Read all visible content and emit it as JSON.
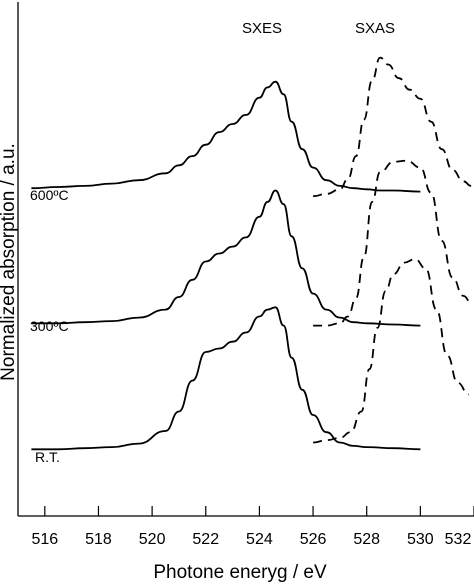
{
  "chart_data": {
    "type": "line",
    "title": "",
    "xlabel": "Photone eneryg / eV",
    "ylabel": "Normalized absorption / a.u.",
    "xlim": [
      515,
      532
    ],
    "x_ticks": [
      516,
      518,
      520,
      522,
      524,
      526,
      528,
      530,
      532
    ],
    "grid": false,
    "legend": "none",
    "annotations": [
      "SXES",
      "SXAS"
    ],
    "series": [
      {
        "name": "600°C",
        "style": "solid",
        "x": [
          515.5,
          516.5,
          517.5,
          518.5,
          519.5,
          520.5,
          521.0,
          521.5,
          522.0,
          522.5,
          523.0,
          523.5,
          524.0,
          524.3,
          524.6,
          524.9,
          525.2,
          525.6,
          526.0,
          526.5,
          527.0,
          527.5,
          528.0,
          528.5,
          529.0,
          530.0
        ],
        "y": [
          0.2,
          0.21,
          0.22,
          0.24,
          0.27,
          0.33,
          0.4,
          0.48,
          0.58,
          0.69,
          0.76,
          0.84,
          0.99,
          1.08,
          1.13,
          1.02,
          0.78,
          0.54,
          0.38,
          0.27,
          0.22,
          0.2,
          0.19,
          0.18,
          0.18,
          0.17
        ]
      },
      {
        "name": "300°C",
        "style": "solid",
        "x": [
          515.5,
          516.5,
          517.5,
          518.5,
          519.5,
          520.5,
          521.0,
          521.5,
          522.0,
          522.5,
          523.0,
          523.5,
          524.0,
          524.3,
          524.6,
          524.9,
          525.2,
          525.6,
          526.0,
          526.5,
          527.0,
          527.5,
          528.0,
          529.0,
          530.0
        ],
        "y": [
          -0.98,
          -0.98,
          -0.97,
          -0.96,
          -0.93,
          -0.86,
          -0.75,
          -0.6,
          -0.44,
          -0.37,
          -0.31,
          -0.23,
          -0.05,
          0.08,
          0.18,
          0.06,
          -0.22,
          -0.5,
          -0.72,
          -0.86,
          -0.93,
          -0.97,
          -0.98,
          -0.99,
          -1.0
        ]
      },
      {
        "name": "R.T.",
        "style": "solid",
        "x": [
          515.5,
          516.5,
          517.5,
          518.5,
          519.5,
          520.5,
          521.0,
          521.5,
          522.0,
          522.5,
          523.0,
          523.5,
          524.0,
          524.3,
          524.6,
          524.9,
          525.2,
          525.6,
          526.0,
          526.5,
          527.0,
          527.5,
          528.0,
          529.0,
          530.0
        ],
        "y": [
          -2.08,
          -2.08,
          -2.07,
          -2.06,
          -2.03,
          -1.92,
          -1.75,
          -1.48,
          -1.23,
          -1.2,
          -1.14,
          -1.06,
          -0.92,
          -0.86,
          -0.84,
          -1.0,
          -1.28,
          -1.56,
          -1.78,
          -1.93,
          -2.02,
          -2.05,
          -2.06,
          -2.07,
          -2.08
        ]
      },
      {
        "name": "SXAS 600°C",
        "style": "dashed",
        "x": [
          526.0,
          526.5,
          527.0,
          527.3,
          527.6,
          527.9,
          528.2,
          528.5,
          528.8,
          529.2,
          529.6,
          530.0,
          530.4,
          530.8,
          531.2,
          531.6,
          531.9
        ],
        "y": [
          0.13,
          0.15,
          0.19,
          0.28,
          0.48,
          0.8,
          1.14,
          1.34,
          1.28,
          1.16,
          1.06,
          0.98,
          0.78,
          0.54,
          0.36,
          0.26,
          0.22
        ]
      },
      {
        "name": "SXAS 300°C",
        "style": "dashed",
        "x": [
          526.0,
          526.5,
          527.0,
          527.3,
          527.6,
          527.9,
          528.2,
          528.5,
          529.0,
          529.5,
          530.0,
          530.4,
          530.8,
          531.2,
          531.6,
          531.9
        ],
        "y": [
          -1.0,
          -1.0,
          -0.98,
          -0.92,
          -0.76,
          -0.4,
          0.08,
          0.34,
          0.43,
          0.44,
          0.38,
          0.16,
          -0.26,
          -0.58,
          -0.74,
          -0.8
        ]
      },
      {
        "name": "SXAS R.T.",
        "style": "dashed",
        "x": [
          526.0,
          526.5,
          527.0,
          527.4,
          527.8,
          528.1,
          528.4,
          528.7,
          529.0,
          529.4,
          529.8,
          530.2,
          530.6,
          531.0,
          531.4,
          531.8
        ],
        "y": [
          -2.02,
          -2.0,
          -1.98,
          -1.93,
          -1.75,
          -1.38,
          -1.02,
          -0.7,
          -0.55,
          -0.45,
          -0.42,
          -0.5,
          -0.86,
          -1.26,
          -1.5,
          -1.6
        ]
      }
    ],
    "curve_labels": [
      "600ºC",
      "300ºC",
      "R.T."
    ]
  }
}
